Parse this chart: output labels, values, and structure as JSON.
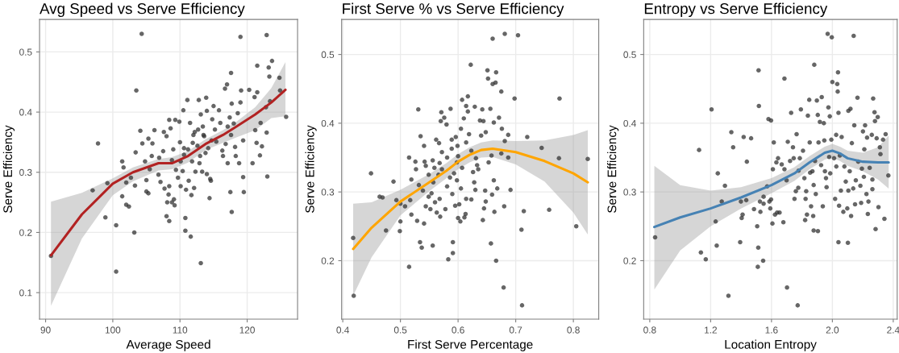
{
  "chart_data": [
    {
      "type": "scatter",
      "title": "Avg Speed vs Serve Efficiency",
      "xlabel": "Average Speed",
      "ylabel": "Serve Efficiency",
      "xlim": [
        89.1,
        127.5
      ],
      "ylim": [
        0.056,
        0.554
      ],
      "xticks": [
        90,
        100,
        110,
        120
      ],
      "yticks": [
        0.1,
        0.2,
        0.3,
        0.4,
        0.5
      ],
      "grid": true,
      "series": [
        {
          "marker": "circle",
          "color": "#333333",
          "x": [
            90.8,
            104.3,
            119.0,
            122.9,
            103.5,
            97.8,
            97.0,
            99.2,
            98.9,
            100.5,
            100.5,
            103.2,
            113.1,
            101.4,
            101.6,
            102.0,
            101.4,
            102.0,
            102.4,
            102.7,
            103.3,
            103.4,
            104.1,
            104.4,
            104.8,
            105.0,
            105.0,
            105.3,
            105.3,
            105.5,
            105.8,
            105.9,
            106.2,
            106.8,
            107.1,
            107.5,
            107.6,
            107.7,
            108.0,
            108.1,
            108.0,
            108.4,
            108.3,
            108.4,
            108.4,
            108.6,
            108.8,
            109.0,
            109.1,
            109.2,
            109.3,
            109.4,
            109.7,
            109.9,
            110.0,
            110.1,
            110.4,
            110.5,
            110.6,
            110.8,
            110.8,
            110.9,
            111.1,
            111.3,
            111.5,
            111.6,
            111.7,
            111.9,
            112.0,
            112.1,
            112.3,
            112.7,
            112.8,
            112.9,
            113.1,
            113.3,
            113.5,
            113.9,
            113.8,
            114.0,
            114.4,
            114.5,
            114.6,
            114.7,
            115.0,
            115.2,
            115.8,
            116.0,
            116.3,
            116.7,
            117.0,
            117.1,
            117.4,
            117.5,
            117.6,
            117.7,
            117.7,
            118.0,
            118.2,
            118.3,
            118.6,
            118.8,
            119.0,
            119.1,
            119.4,
            119.4,
            119.5,
            120.3,
            120.8,
            121.1,
            121.2,
            121.4,
            121.5,
            121.5,
            121.9,
            122.0,
            122.2,
            122.8,
            122.9,
            123.0,
            123.2,
            123.3,
            123.4,
            123.7,
            124.8,
            124.9,
            125.8,
            110.1,
            110.6,
            111.2,
            111.8,
            112.6,
            113.0,
            113.6,
            114.2,
            114.8,
            115.4,
            116.4,
            116.8,
            117.1,
            117.6,
            113.4,
            112.2,
            108.8,
            106.9,
            114.0
          ],
          "values": [
            0.161,
            0.53,
            0.525,
            0.528,
            0.436,
            0.348,
            0.27,
            0.282,
            0.225,
            0.212,
            0.135,
            0.2,
            0.149,
            0.318,
            0.308,
            0.283,
            0.26,
            0.246,
            0.243,
            0.291,
            0.278,
            0.333,
            0.369,
            0.348,
            0.318,
            0.287,
            0.268,
            0.265,
            0.356,
            0.305,
            0.327,
            0.348,
            0.37,
            0.296,
            0.284,
            0.335,
            0.367,
            0.273,
            0.36,
            0.25,
            0.227,
            0.219,
            0.263,
            0.387,
            0.277,
            0.373,
            0.25,
            0.338,
            0.255,
            0.245,
            0.387,
            0.304,
            0.291,
            0.384,
            0.35,
            0.277,
            0.302,
            0.403,
            0.34,
            0.224,
            0.203,
            0.271,
            0.42,
            0.286,
            0.382,
            0.193,
            0.262,
            0.349,
            0.362,
            0.274,
            0.301,
            0.371,
            0.42,
            0.315,
            0.396,
            0.301,
            0.362,
            0.424,
            0.332,
            0.402,
            0.257,
            0.289,
            0.286,
            0.353,
            0.41,
            0.371,
            0.403,
            0.382,
            0.336,
            0.439,
            0.446,
            0.376,
            0.391,
            0.267,
            0.465,
            0.234,
            0.414,
            0.381,
            0.342,
            0.327,
            0.398,
            0.315,
            0.416,
            0.436,
            0.353,
            0.292,
            0.267,
            0.437,
            0.315,
            0.425,
            0.37,
            0.349,
            0.433,
            0.477,
            0.328,
            0.382,
            0.343,
            0.408,
            0.366,
            0.293,
            0.474,
            0.459,
            0.418,
            0.485,
            0.457,
            0.436,
            0.392,
            0.318,
            0.329,
            0.338,
            0.318,
            0.344,
            0.327,
            0.36,
            0.34,
            0.388,
            0.351,
            0.327,
            0.347,
            0.315,
            0.362,
            0.376,
            0.367,
            0.32,
            0.324,
            0.297
          ]
        },
        {
          "type": "line",
          "color": "#b22222",
          "x": [
            90.8,
            95.4,
            100,
            103,
            106.8,
            108.8,
            111.2,
            113.8,
            116.4,
            118.4,
            121.2,
            123.6,
            125.7
          ],
          "values": [
            0.162,
            0.23,
            0.281,
            0.3,
            0.315,
            0.315,
            0.327,
            0.347,
            0.362,
            0.376,
            0.396,
            0.416,
            0.437
          ],
          "lower": [
            0.078,
            0.19,
            0.262,
            0.285,
            0.303,
            0.305,
            0.316,
            0.337,
            0.349,
            0.358,
            0.37,
            0.39,
            0.393
          ],
          "upper": [
            0.251,
            0.266,
            0.29,
            0.308,
            0.322,
            0.325,
            0.335,
            0.355,
            0.37,
            0.384,
            0.408,
            0.44,
            0.483
          ]
        }
      ]
    },
    {
      "type": "scatter",
      "title": "First Serve % vs Serve Efficiency",
      "xlabel": "First Serve Percentage",
      "ylabel": "Serve Efficiency",
      "xlim": [
        0.398,
        0.844
      ],
      "ylim": [
        0.115,
        0.551
      ],
      "xticks": [
        0.4,
        0.5,
        0.6,
        0.7,
        0.8
      ],
      "yticks": [
        0.2,
        0.3,
        0.4,
        0.5
      ],
      "grid": true,
      "series": [
        {
          "marker": "circle",
          "color": "#333333",
          "x": [
            0.418,
            0.419,
            0.449,
            0.464,
            0.469,
            0.475,
            0.488,
            0.493,
            0.499,
            0.5,
            0.5,
            0.508,
            0.515,
            0.515,
            0.517,
            0.519,
            0.519,
            0.526,
            0.527,
            0.529,
            0.531,
            0.532,
            0.534,
            0.535,
            0.537,
            0.539,
            0.541,
            0.541,
            0.542,
            0.544,
            0.544,
            0.549,
            0.552,
            0.554,
            0.556,
            0.556,
            0.557,
            0.56,
            0.562,
            0.563,
            0.566,
            0.567,
            0.568,
            0.569,
            0.57,
            0.571,
            0.572,
            0.572,
            0.576,
            0.578,
            0.58,
            0.581,
            0.581,
            0.583,
            0.587,
            0.589,
            0.589,
            0.59,
            0.591,
            0.591,
            0.593,
            0.595,
            0.596,
            0.598,
            0.599,
            0.6,
            0.602,
            0.604,
            0.605,
            0.605,
            0.607,
            0.607,
            0.61,
            0.611,
            0.613,
            0.614,
            0.614,
            0.617,
            0.617,
            0.619,
            0.622,
            0.623,
            0.626,
            0.628,
            0.629,
            0.63,
            0.633,
            0.635,
            0.638,
            0.64,
            0.642,
            0.643,
            0.644,
            0.645,
            0.647,
            0.648,
            0.648,
            0.651,
            0.652,
            0.653,
            0.656,
            0.657,
            0.658,
            0.659,
            0.66,
            0.66,
            0.662,
            0.662,
            0.663,
            0.665,
            0.666,
            0.666,
            0.668,
            0.671,
            0.675,
            0.675,
            0.676,
            0.679,
            0.68,
            0.681,
            0.681,
            0.687,
            0.687,
            0.691,
            0.698,
            0.704,
            0.71,
            0.711,
            0.714,
            0.72,
            0.745,
            0.758,
            0.775,
            0.776,
            0.805,
            0.825,
            0.586,
            0.598,
            0.6,
            0.614,
            0.623,
            0.631,
            0.568,
            0.559,
            0.549
          ],
          "values": [
            0.233,
            0.149,
            0.327,
            0.293,
            0.292,
            0.244,
            0.315,
            0.288,
            0.243,
            0.257,
            0.283,
            0.279,
            0.35,
            0.191,
            0.288,
            0.318,
            0.267,
            0.344,
            0.333,
            0.258,
            0.42,
            0.31,
            0.227,
            0.381,
            0.219,
            0.302,
            0.367,
            0.254,
            0.344,
            0.338,
            0.279,
            0.293,
            0.275,
            0.298,
            0.222,
            0.346,
            0.314,
            0.285,
            0.376,
            0.27,
            0.325,
            0.371,
            0.29,
            0.264,
            0.403,
            0.416,
            0.358,
            0.333,
            0.408,
            0.275,
            0.398,
            0.308,
            0.35,
            0.202,
            0.421,
            0.376,
            0.363,
            0.297,
            0.227,
            0.211,
            0.327,
            0.28,
            0.38,
            0.343,
            0.367,
            0.262,
            0.282,
            0.257,
            0.305,
            0.392,
            0.434,
            0.335,
            0.407,
            0.263,
            0.268,
            0.425,
            0.29,
            0.439,
            0.417,
            0.384,
            0.485,
            0.289,
            0.329,
            0.314,
            0.424,
            0.303,
            0.339,
            0.333,
            0.404,
            0.382,
            0.42,
            0.259,
            0.403,
            0.276,
            0.302,
            0.387,
            0.286,
            0.477,
            0.465,
            0.343,
            0.421,
            0.225,
            0.353,
            0.296,
            0.523,
            0.457,
            0.317,
            0.401,
            0.271,
            0.459,
            0.474,
            0.2,
            0.305,
            0.408,
            0.446,
            0.356,
            0.392,
            0.161,
            0.279,
            0.53,
            0.374,
            0.383,
            0.35,
            0.303,
            0.436,
            0.528,
            0.245,
            0.135,
            0.272,
            0.38,
            0.364,
            0.274,
            0.349,
            0.436,
            0.25,
            0.348,
            0.321,
            0.317,
            0.352,
            0.372,
            0.36,
            0.349,
            0.342,
            0.335,
            0.325
          ]
        },
        {
          "type": "line",
          "color": "#ffa500",
          "x": [
            0.418,
            0.45,
            0.5,
            0.55,
            0.58,
            0.6,
            0.62,
            0.64,
            0.66,
            0.7,
            0.75,
            0.8,
            0.825
          ],
          "values": [
            0.217,
            0.248,
            0.286,
            0.314,
            0.331,
            0.344,
            0.354,
            0.361,
            0.363,
            0.358,
            0.345,
            0.327,
            0.314
          ],
          "lower": [
            0.149,
            0.205,
            0.266,
            0.301,
            0.32,
            0.333,
            0.343,
            0.35,
            0.351,
            0.34,
            0.315,
            0.27,
            0.238
          ],
          "upper": [
            0.283,
            0.285,
            0.303,
            0.326,
            0.342,
            0.355,
            0.365,
            0.372,
            0.375,
            0.374,
            0.375,
            0.383,
            0.39
          ]
        }
      ]
    },
    {
      "type": "scatter",
      "title": "Entropy vs Serve Efficiency",
      "xlabel": "Location Entropy",
      "ylabel": "Serve Efficiency",
      "xlim": [
        0.76,
        2.426
      ],
      "ylim": [
        0.115,
        0.551
      ],
      "xticks": [
        0.8,
        1.2,
        1.6,
        {
          "value": 2.0,
          "label": "2.0"
        },
        2.4
      ],
      "yticks": [
        0.2,
        0.3,
        0.4,
        0.5
      ],
      "grid": true,
      "series": [
        {
          "marker": "circle",
          "color": "#333333",
          "x": [
            0.835,
            1.124,
            1.136,
            1.168,
            1.206,
            1.233,
            1.24,
            1.247,
            1.273,
            1.294,
            1.317,
            1.336,
            1.348,
            1.394,
            1.399,
            1.404,
            1.41,
            1.417,
            1.434,
            1.438,
            1.466,
            1.485,
            1.506,
            1.51,
            1.513,
            1.515,
            1.517,
            1.524,
            1.527,
            1.545,
            1.548,
            1.548,
            1.571,
            1.58,
            1.586,
            1.592,
            1.597,
            1.597,
            1.606,
            1.609,
            1.615,
            1.623,
            1.632,
            1.637,
            1.643,
            1.653,
            1.667,
            1.678,
            1.685,
            1.685,
            1.699,
            1.702,
            1.707,
            1.722,
            1.729,
            1.741,
            1.746,
            1.751,
            1.76,
            1.765,
            1.772,
            1.776,
            1.778,
            1.786,
            1.793,
            1.807,
            1.816,
            1.821,
            1.824,
            1.828,
            1.833,
            1.839,
            1.848,
            1.851,
            1.854,
            1.86,
            1.869,
            1.874,
            1.877,
            1.877,
            1.881,
            1.886,
            1.891,
            1.898,
            1.904,
            1.905,
            1.909,
            1.918,
            1.926,
            1.93,
            1.937,
            1.944,
            1.947,
            1.951,
            1.958,
            1.962,
            1.969,
            1.974,
            1.979,
            1.983,
            1.986,
            1.993,
            1.996,
            2.0,
            2.011,
            2.018,
            2.025,
            2.026,
            2.032,
            2.035,
            2.037,
            2.04,
            2.04,
            2.044,
            2.049,
            2.056,
            2.061,
            2.072,
            2.079,
            2.088,
            2.098,
            2.102,
            2.105,
            2.105,
            2.114,
            2.119,
            2.123,
            2.128,
            2.137,
            2.14,
            2.144,
            2.149,
            2.154,
            2.165,
            2.17,
            2.184,
            2.189,
            2.194,
            2.201,
            2.207,
            2.21,
            2.215,
            2.224,
            2.228,
            2.233,
            2.237,
            2.245,
            2.259,
            2.263,
            2.263,
            2.268,
            2.277,
            2.28,
            2.284,
            2.291,
            2.298,
            2.303,
            2.312,
            2.316,
            2.333,
            2.342,
            2.35,
            2.368
          ],
          "values": [
            0.234,
            0.361,
            0.212,
            0.202,
            0.42,
            0.257,
            0.222,
            0.327,
            0.286,
            0.309,
            0.149,
            0.387,
            0.365,
            0.227,
            0.286,
            0.262,
            0.267,
            0.38,
            0.288,
            0.344,
            0.378,
            0.275,
            0.25,
            0.191,
            0.219,
            0.477,
            0.425,
            0.286,
            0.271,
            0.2,
            0.293,
            0.283,
            0.308,
            0.406,
            0.286,
            0.276,
            0.289,
            0.404,
            0.254,
            0.333,
            0.372,
            0.267,
            0.343,
            0.27,
            0.349,
            0.27,
            0.34,
            0.256,
            0.465,
            0.333,
            0.317,
            0.161,
            0.373,
            0.345,
            0.415,
            0.365,
            0.349,
            0.29,
            0.301,
            0.384,
            0.135,
            0.306,
            0.331,
            0.349,
            0.42,
            0.36,
            0.32,
            0.259,
            0.29,
            0.301,
            0.267,
            0.411,
            0.434,
            0.372,
            0.328,
            0.279,
            0.33,
            0.265,
            0.244,
            0.31,
            0.485,
            0.345,
            0.297,
            0.433,
            0.412,
            0.243,
            0.372,
            0.402,
            0.339,
            0.438,
            0.279,
            0.4,
            0.375,
            0.33,
            0.32,
            0.307,
            0.53,
            0.423,
            0.351,
            0.41,
            0.327,
            0.376,
            0.525,
            0.46,
            0.349,
            0.29,
            0.383,
            0.337,
            0.457,
            0.446,
            0.474,
            0.415,
            0.227,
            0.28,
            0.353,
            0.302,
            0.38,
            0.271,
            0.337,
            0.315,
            0.276,
            0.226,
            0.302,
            0.418,
            0.33,
            0.421,
            0.265,
            0.371,
            0.305,
            0.527,
            0.397,
            0.282,
            0.317,
            0.437,
            0.344,
            0.309,
            0.284,
            0.334,
            0.388,
            0.322,
            0.362,
            0.397,
            0.297,
            0.379,
            0.268,
            0.286,
            0.335,
            0.383,
            0.318,
            0.304,
            0.436,
            0.416,
            0.403,
            0.246,
            0.378,
            0.409,
            0.278,
            0.365,
            0.355,
            0.376,
            0.261,
            0.384,
            0.324
          ]
        },
        {
          "type": "line",
          "color": "#4682b4",
          "x": [
            0.83,
            1.0,
            1.2,
            1.4,
            1.6,
            1.75,
            1.85,
            1.95,
            2.0,
            2.05,
            2.1,
            2.2,
            2.3,
            2.37
          ],
          "values": [
            0.249,
            0.263,
            0.276,
            0.292,
            0.31,
            0.327,
            0.343,
            0.357,
            0.36,
            0.356,
            0.349,
            0.344,
            0.343,
            0.343
          ],
          "lower": [
            0.158,
            0.215,
            0.25,
            0.276,
            0.298,
            0.316,
            0.333,
            0.347,
            0.35,
            0.345,
            0.338,
            0.33,
            0.318,
            0.305
          ],
          "upper": [
            0.338,
            0.31,
            0.302,
            0.307,
            0.32,
            0.336,
            0.352,
            0.366,
            0.37,
            0.366,
            0.36,
            0.357,
            0.365,
            0.382
          ]
        }
      ]
    }
  ]
}
